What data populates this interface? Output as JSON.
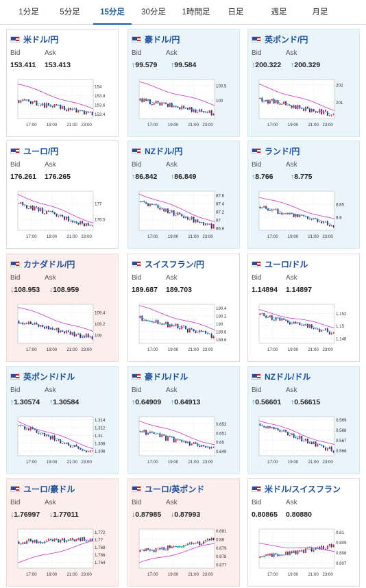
{
  "tabs": [
    {
      "label": "1分足",
      "active": false
    },
    {
      "label": "5分足",
      "active": false
    },
    {
      "label": "15分足",
      "active": true
    },
    {
      "label": "30分足",
      "active": false
    },
    {
      "label": "1時間足",
      "active": false
    },
    {
      "label": "日足",
      "active": false
    },
    {
      "label": "週足",
      "active": false
    },
    {
      "label": "月足",
      "active": false
    }
  ],
  "labels": {
    "bid": "Bid",
    "ask": "Ask"
  },
  "colors": {
    "accent": "#1a5aa8",
    "up_arrow": "#1f8ad6",
    "down_arrow": "#d63a3a",
    "card_up_bg": "#e9f4fb",
    "card_down_bg": "#fdeeee",
    "candle_up": "#e02020",
    "candle_down": "#1a2a8c",
    "ma_long": "#cc33cc",
    "ma_short": "#33aacc"
  },
  "pairs": [
    {
      "name": "米ドル/円",
      "flag": "us-jp-flag-icon",
      "state": "none",
      "bid": "153.411",
      "ask": "153.413",
      "bid_arrow": "",
      "ask_arrow": "",
      "chart_data": {
        "type": "candlestick",
        "x_ticks": [
          "17:00",
          "19:00",
          "21:00",
          "23:00"
        ],
        "y_ticks": [
          "154",
          "153.8",
          "153.6",
          "153.4"
        ],
        "ylim": [
          153.3,
          154.15
        ],
        "start": 153.7,
        "end": 153.41,
        "ma_start": 154.05,
        "ma_end": 153.5
      }
    },
    {
      "name": "豪ドル/円",
      "flag": "au-jp-flag-icon",
      "state": "up",
      "bid": "99.579",
      "ask": "99.584",
      "bid_arrow": "↑",
      "ask_arrow": "↑",
      "chart_data": {
        "type": "candlestick",
        "x_ticks": [
          "17:00",
          "19:00",
          "21:00",
          "23:00"
        ],
        "y_ticks": [
          "100.5",
          "100"
        ],
        "ylim": [
          99.4,
          100.7
        ],
        "start": 100.0,
        "end": 99.58,
        "ma_start": 100.6,
        "ma_end": 99.85
      }
    },
    {
      "name": "英ポンド/円",
      "flag": "gb-jp-flag-icon",
      "state": "up",
      "bid": "200.322",
      "ask": "200.329",
      "bid_arrow": "↑",
      "ask_arrow": "↑",
      "chart_data": {
        "type": "candlestick",
        "x_ticks": [
          "17:00",
          "19:00",
          "21:00",
          "23:00"
        ],
        "y_ticks": [
          "202",
          "201"
        ],
        "ylim": [
          200.1,
          202.3
        ],
        "start": 201.2,
        "end": 200.32,
        "ma_start": 202.0,
        "ma_end": 200.6
      }
    },
    {
      "name": "ユーロ/円",
      "flag": "eu-jp-flag-icon",
      "state": "none",
      "bid": "176.261",
      "ask": "176.265",
      "bid_arrow": "",
      "ask_arrow": "",
      "chart_data": {
        "type": "candlestick",
        "x_ticks": [
          "17:00",
          "19:00",
          "21:00",
          "23:00"
        ],
        "y_ticks": [
          "177",
          "176.5"
        ],
        "ylim": [
          176.15,
          177.4
        ],
        "start": 177.0,
        "end": 176.26,
        "ma_start": 177.3,
        "ma_end": 176.4
      }
    },
    {
      "name": "NZドル/円",
      "flag": "nz-jp-flag-icon",
      "state": "up",
      "bid": "86.842",
      "ask": "86.849",
      "bid_arrow": "↑",
      "ask_arrow": "↑",
      "chart_data": {
        "type": "candlestick",
        "x_ticks": [
          "17:00",
          "19:00",
          "21:00",
          "23:00"
        ],
        "y_ticks": [
          "87.6",
          "87.4",
          "87.2",
          "87",
          "86.8"
        ],
        "ylim": [
          86.75,
          87.7
        ],
        "start": 87.45,
        "end": 86.84,
        "ma_start": 87.65,
        "ma_end": 86.95
      }
    },
    {
      "name": "ランド/円",
      "flag": "za-jp-flag-icon",
      "state": "up",
      "bid": "8.766",
      "ask": "8.775",
      "bid_arrow": "↑",
      "ask_arrow": "↑",
      "chart_data": {
        "type": "candlestick",
        "x_ticks": [
          "17:00",
          "19:00",
          "21:00",
          "23:00"
        ],
        "y_ticks": [
          "8.85",
          "8.8"
        ],
        "ylim": [
          8.75,
          8.9
        ],
        "start": 8.84,
        "end": 8.77,
        "ma_start": 8.88,
        "ma_end": 8.79
      }
    },
    {
      "name": "カナダドル/円",
      "flag": "ca-jp-flag-icon",
      "state": "down",
      "bid": "108.953",
      "ask": "108.959",
      "bid_arrow": "↓",
      "ask_arrow": "↓",
      "chart_data": {
        "type": "candlestick",
        "x_ticks": [
          "17:00",
          "19:00",
          "21:00",
          "23:00"
        ],
        "y_ticks": [
          "109.4",
          "109.2",
          "109"
        ],
        "ylim": [
          108.85,
          109.55
        ],
        "start": 109.25,
        "end": 108.95,
        "ma_start": 109.5,
        "ma_end": 109.05
      }
    },
    {
      "name": "スイスフラン/円",
      "flag": "ch-jp-flag-icon",
      "state": "none",
      "bid": "189.687",
      "ask": "189.703",
      "bid_arrow": "",
      "ask_arrow": "",
      "chart_data": {
        "type": "candlestick",
        "x_ticks": [
          "17:00",
          "19:00",
          "21:00",
          "23:00"
        ],
        "y_ticks": [
          "190.4",
          "190.2",
          "190",
          "189.8",
          "189.6"
        ],
        "ylim": [
          189.5,
          190.5
        ],
        "start": 190.15,
        "end": 189.69,
        "ma_start": 190.45,
        "ma_end": 189.85
      }
    },
    {
      "name": "ユーロ/ドル",
      "flag": "eu-us-flag-icon",
      "state": "none",
      "bid": "1.14894",
      "ask": "1.14897",
      "bid_arrow": "",
      "ask_arrow": "",
      "chart_data": {
        "type": "candlestick",
        "x_ticks": [
          "17:00",
          "19:00",
          "21:00",
          "23:00"
        ],
        "y_ticks": [
          "1.152",
          "1.15",
          "1.148"
        ],
        "ylim": [
          1.1472,
          1.1535
        ],
        "start": 1.1518,
        "end": 1.1489,
        "ma_start": 1.1525,
        "ma_end": 1.1498
      }
    },
    {
      "name": "英ポンド/ドル",
      "flag": "gb-us-flag-icon",
      "state": "up",
      "bid": "1.30574",
      "ask": "1.30584",
      "bid_arrow": "↑",
      "ask_arrow": "↑",
      "chart_data": {
        "type": "candlestick",
        "x_ticks": [
          "17:00",
          "19:00",
          "21:00",
          "23:00"
        ],
        "y_ticks": [
          "1.314",
          "1.312",
          "1.31",
          "1.308",
          "1.306"
        ],
        "ylim": [
          1.3048,
          1.3148
        ],
        "start": 1.3125,
        "end": 1.3057,
        "ma_start": 1.3135,
        "ma_end": 1.3068
      }
    },
    {
      "name": "豪ドル/ドル",
      "flag": "au-us-flag-icon",
      "state": "up",
      "bid": "0.64909",
      "ask": "0.64913",
      "bid_arrow": "↑",
      "ask_arrow": "↑",
      "chart_data": {
        "type": "candlestick",
        "x_ticks": [
          "17:00",
          "19:00",
          "21:00",
          "23:00"
        ],
        "y_ticks": [
          "0.652",
          "0.651",
          "0.65",
          "0.649"
        ],
        "ylim": [
          0.6485,
          0.6528
        ],
        "start": 0.6512,
        "end": 0.6491,
        "ma_start": 0.6524,
        "ma_end": 0.6497
      }
    },
    {
      "name": "NZドル/ドル",
      "flag": "nz-us-flag-icon",
      "state": "up",
      "bid": "0.56601",
      "ask": "0.56615",
      "bid_arrow": "↑",
      "ask_arrow": "↑",
      "chart_data": {
        "type": "candlestick",
        "x_ticks": [
          "17:00",
          "19:00",
          "21:00",
          "23:00"
        ],
        "y_ticks": [
          "0.569",
          "0.568",
          "0.567",
          "0.566"
        ],
        "ylim": [
          0.5655,
          0.5693
        ],
        "start": 0.5686,
        "end": 0.566,
        "ma_start": 0.569,
        "ma_end": 0.5665
      }
    },
    {
      "name": "ユーロ/豪ドル",
      "flag": "eu-au-flag-icon",
      "state": "down",
      "bid": "1.76997",
      "ask": "1.77011",
      "bid_arrow": "↓",
      "ask_arrow": "↓",
      "chart_data": {
        "type": "candlestick",
        "x_ticks": [
          "17:00",
          "19:00",
          "21:00",
          "23:00"
        ],
        "y_ticks": [
          "1.772",
          "1.77",
          "1.768",
          "1.766",
          "1.764"
        ],
        "ylim": [
          1.7625,
          1.7728
        ],
        "start": 1.7695,
        "end": 1.77,
        "ma_start": 1.764,
        "ma_end": 1.7695
      }
    },
    {
      "name": "ユーロ/英ポンド",
      "flag": "eu-gb-flag-icon",
      "state": "down",
      "bid": "0.87985",
      "ask": "0.87993",
      "bid_arrow": "↓",
      "ask_arrow": "↓",
      "chart_data": {
        "type": "candlestick",
        "x_ticks": [
          "17:00",
          "19:00",
          "21:00",
          "23:00"
        ],
        "y_ticks": [
          "0.881",
          "0.88",
          "0.879",
          "0.878",
          "0.877"
        ],
        "ylim": [
          0.8766,
          0.8812
        ],
        "start": 0.8785,
        "end": 0.8799,
        "ma_start": 0.8772,
        "ma_end": 0.8795
      }
    },
    {
      "name": "米ドル/スイスフラン",
      "flag": "us-ch-flag-icon",
      "state": "none",
      "bid": "0.80865",
      "ask": "0.80880",
      "bid_arrow": "",
      "ask_arrow": "",
      "chart_data": {
        "type": "candlestick",
        "x_ticks": [
          "17:00",
          "19:00",
          "21:00",
          "23:00"
        ],
        "y_ticks": [
          "0.81",
          "0.809",
          "0.808",
          "0.807"
        ],
        "ylim": [
          0.8065,
          0.8103
        ],
        "start": 0.8075,
        "end": 0.8087,
        "ma_start": 0.8088,
        "ma_end": 0.8082
      }
    }
  ]
}
